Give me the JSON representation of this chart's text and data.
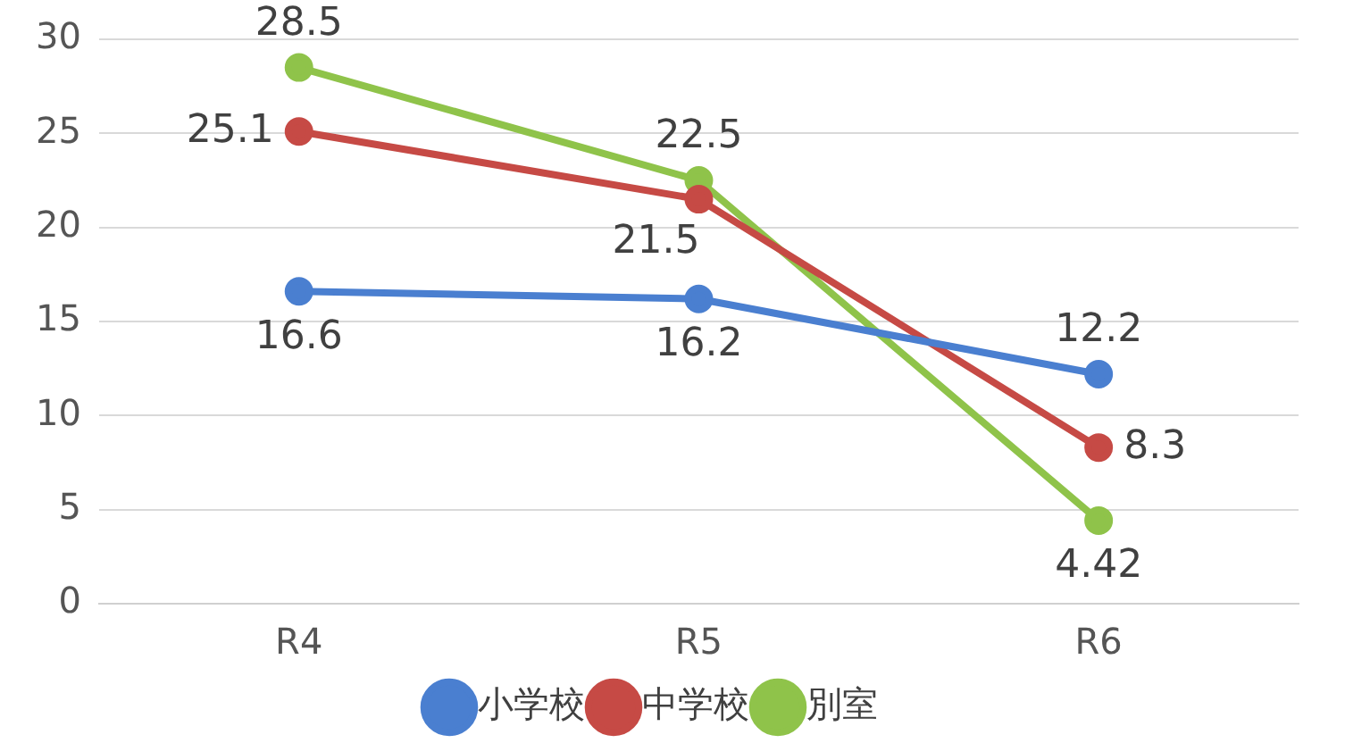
{
  "chart_data": {
    "type": "line",
    "categories": [
      "R4",
      "R5",
      "R6"
    ],
    "series": [
      {
        "name": "小学校",
        "color": "#4a7fd0",
        "values": [
          16.6,
          16.2,
          12.2
        ]
      },
      {
        "name": "中学校",
        "color": "#c64a45",
        "values": [
          25.1,
          21.5,
          8.3
        ]
      },
      {
        "name": "別室",
        "color": "#8fc34a",
        "values": [
          28.5,
          22.5,
          4.42
        ]
      }
    ],
    "ylim": [
      0,
      30
    ],
    "yticks": [
      0,
      5,
      10,
      15,
      20,
      25,
      30
    ],
    "grid": "y",
    "legend": "bottom",
    "marker": "circle",
    "data_labels": true
  }
}
